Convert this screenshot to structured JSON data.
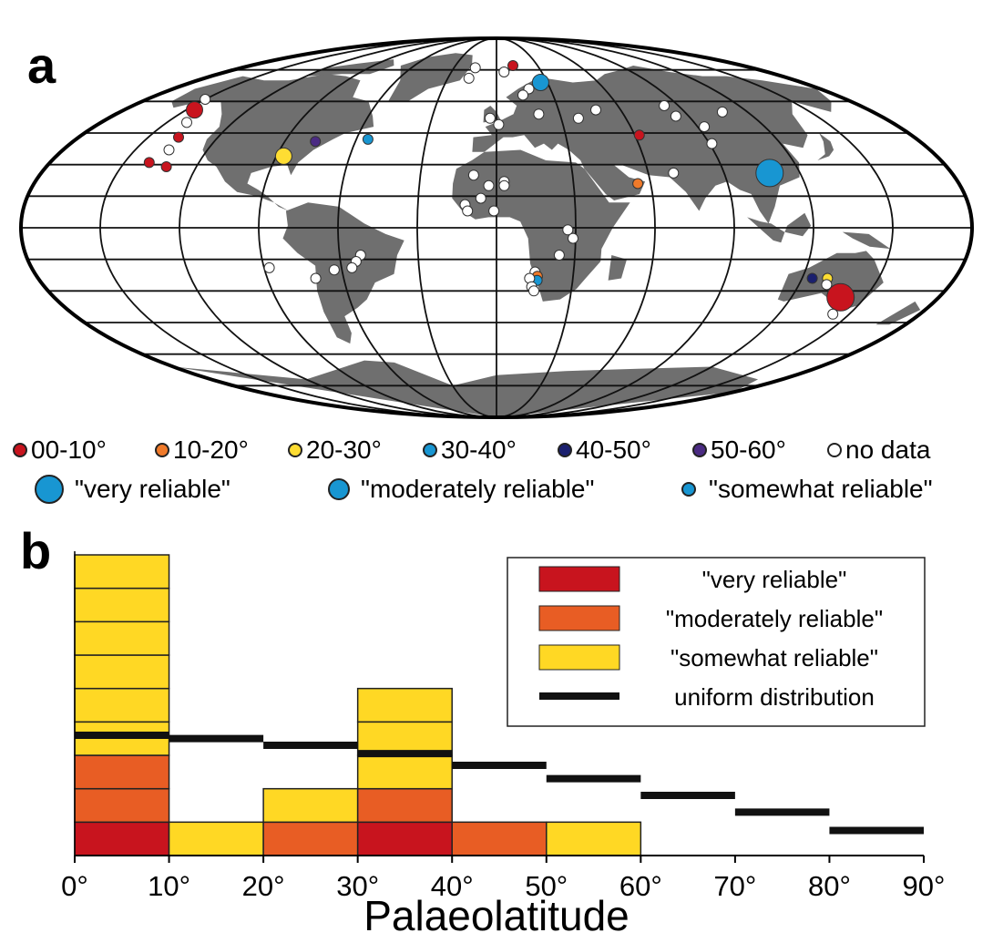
{
  "panel_labels": {
    "a": "a",
    "b": "b"
  },
  "colors": {
    "land": "#6f6f6f",
    "grid": "#111111",
    "red": "#c8141e",
    "orange": "#f07a2a",
    "yellow": "#fedd33",
    "light_blue": "#1896d2",
    "dark_blue": "#1a1f6e",
    "purple": "#4b2b83",
    "white": "#ffffff",
    "very_reliable": "#c8141e",
    "moderately_reliable": "#e85d24",
    "somewhat_reliable": "#ffd824",
    "uniform": "#111111"
  },
  "map_legend": {
    "bins": [
      {
        "label": "00-10°",
        "color": "#c8141e"
      },
      {
        "label": "10-20°",
        "color": "#f07a2a"
      },
      {
        "label": "20-30°",
        "color": "#fedd33"
      },
      {
        "label": "30-40°",
        "color": "#1896d2"
      },
      {
        "label": "40-50°",
        "color": "#1a1f6e"
      },
      {
        "label": "50-60°",
        "color": "#4b2b83"
      },
      {
        "label": "no data",
        "color": "#ffffff"
      }
    ],
    "reliability": [
      {
        "label": "\"very reliable\"",
        "size": "large"
      },
      {
        "label": "\"moderately reliable\"",
        "size": "medium"
      },
      {
        "label": "\"somewhat reliable\"",
        "size": "small"
      }
    ]
  },
  "chart_data": {
    "type": "bar",
    "stacked": true,
    "xlabel": "Palaeolatitude",
    "ylabel": "",
    "x_ticks": [
      "0°",
      "10°",
      "20°",
      "30°",
      "40°",
      "50°",
      "60°",
      "70°",
      "80°",
      "90°"
    ],
    "bins": [
      "0-10",
      "10-20",
      "20-30",
      "30-40",
      "40-50",
      "50-60",
      "60-70",
      "70-80",
      "80-90"
    ],
    "xlim": [
      0,
      90
    ],
    "ylim": [
      0,
      9
    ],
    "series": [
      {
        "name": "\"very reliable\"",
        "values": [
          1,
          0,
          0,
          1,
          0,
          0,
          0,
          0,
          0
        ],
        "color": "#c8141e"
      },
      {
        "name": "\"moderately reliable\"",
        "values": [
          2,
          0,
          1,
          1,
          1,
          0,
          0,
          0,
          0
        ],
        "color": "#e85d24"
      },
      {
        "name": "\"somewhat reliable\"",
        "values": [
          6,
          1,
          1,
          3,
          0,
          1,
          0,
          0,
          0
        ],
        "color": "#ffd824"
      }
    ],
    "uniform_distribution": {
      "name": "uniform distribution",
      "values": [
        3.6,
        3.5,
        3.3,
        3.05,
        2.7,
        2.3,
        1.8,
        1.3,
        0.75
      ]
    },
    "legend": {
      "position": "top-right",
      "entries": [
        "\"very reliable\"",
        "\"moderately reliable\"",
        "\"somewhat reliable\"",
        "uniform distribution"
      ]
    },
    "grid": false
  },
  "map_sites": [
    {
      "lon": -150,
      "lat": 61,
      "bin": "white",
      "size": "small"
    },
    {
      "lon": -146,
      "lat": 56,
      "bin": "red",
      "size": "medium"
    },
    {
      "lon": -141,
      "lat": 50,
      "bin": "white",
      "size": "small"
    },
    {
      "lon": -137,
      "lat": 43,
      "bin": "red",
      "size": "small"
    },
    {
      "lon": -136,
      "lat": 37,
      "bin": "white",
      "size": "small"
    },
    {
      "lon": -140,
      "lat": 31,
      "bin": "red",
      "size": "small"
    },
    {
      "lon": -132,
      "lat": 29,
      "bin": "red",
      "size": "small"
    },
    {
      "lon": -87,
      "lat": 34,
      "bin": "yellow",
      "size": "medium"
    },
    {
      "lon": -77,
      "lat": 41,
      "bin": "purple",
      "size": "small"
    },
    {
      "lon": -55,
      "lat": 42,
      "bin": "light_blue",
      "size": "small"
    },
    {
      "lon": -15,
      "lat": 76,
      "bin": "white",
      "size": "small"
    },
    {
      "lon": -17,
      "lat": 71,
      "bin": "white",
      "size": "small"
    },
    {
      "lon": 12,
      "lat": 77,
      "bin": "red",
      "size": "small"
    },
    {
      "lon": 5,
      "lat": 74,
      "bin": "white",
      "size": "small"
    },
    {
      "lon": 26,
      "lat": 69,
      "bin": "light_blue",
      "size": "medium"
    },
    {
      "lon": 18,
      "lat": 66,
      "bin": "white",
      "size": "small"
    },
    {
      "lon": 14,
      "lat": 63,
      "bin": "white",
      "size": "small"
    },
    {
      "lon": -3,
      "lat": 52,
      "bin": "white",
      "size": "small"
    },
    {
      "lon": 1,
      "lat": 49,
      "bin": "white",
      "size": "small"
    },
    {
      "lon": 20,
      "lat": 54,
      "bin": "white",
      "size": "small"
    },
    {
      "lon": 38,
      "lat": 52,
      "bin": "white",
      "size": "small"
    },
    {
      "lon": 48,
      "lat": 56,
      "bin": "white",
      "size": "small"
    },
    {
      "lon": 83,
      "lat": 58,
      "bin": "white",
      "size": "small"
    },
    {
      "lon": 108,
      "lat": 55,
      "bin": "white",
      "size": "small"
    },
    {
      "lon": 84,
      "lat": 53,
      "bin": "white",
      "size": "small"
    },
    {
      "lon": 93,
      "lat": 48,
      "bin": "white",
      "size": "small"
    },
    {
      "lon": 62,
      "lat": 44,
      "bin": "red",
      "size": "small"
    },
    {
      "lon": 91,
      "lat": 40,
      "bin": "white",
      "size": "small"
    },
    {
      "lon": 110,
      "lat": 30,
      "bin": "white",
      "size": "small"
    },
    {
      "lon": 108,
      "lat": 26,
      "bin": "light_blue",
      "size": "large"
    },
    {
      "lon": 70,
      "lat": 26,
      "bin": "white",
      "size": "small"
    },
    {
      "lon": 55,
      "lat": 21,
      "bin": "orange",
      "size": "small"
    },
    {
      "lon": -9,
      "lat": 25,
      "bin": "white",
      "size": "small"
    },
    {
      "lon": -3,
      "lat": 20,
      "bin": "white",
      "size": "small"
    },
    {
      "lon": 3,
      "lat": 22,
      "bin": "white",
      "size": "small"
    },
    {
      "lon": 3,
      "lat": 20,
      "bin": "white",
      "size": "small"
    },
    {
      "lon": -6,
      "lat": 14,
      "bin": "white",
      "size": "small"
    },
    {
      "lon": -12,
      "lat": 11,
      "bin": "white",
      "size": "small"
    },
    {
      "lon": -11,
      "lat": 8,
      "bin": "white",
      "size": "small"
    },
    {
      "lon": -1,
      "lat": 8,
      "bin": "white",
      "size": "small"
    },
    {
      "lon": 27,
      "lat": -1,
      "bin": "white",
      "size": "small"
    },
    {
      "lon": 29,
      "lat": -5,
      "bin": "white",
      "size": "small"
    },
    {
      "lon": 24,
      "lat": -13,
      "bin": "white",
      "size": "small"
    },
    {
      "lon": 15,
      "lat": -21,
      "bin": "white",
      "size": "small"
    },
    {
      "lon": 16,
      "lat": -23,
      "bin": "orange",
      "size": "small"
    },
    {
      "lon": 16,
      "lat": -25,
      "bin": "light_blue",
      "size": "small"
    },
    {
      "lon": 13,
      "lat": -24,
      "bin": "white",
      "size": "small"
    },
    {
      "lon": 14,
      "lat": -28,
      "bin": "white",
      "size": "small"
    },
    {
      "lon": 15,
      "lat": -30,
      "bin": "white",
      "size": "small"
    },
    {
      "lon": -52,
      "lat": -13,
      "bin": "white",
      "size": "small"
    },
    {
      "lon": -54,
      "lat": -16,
      "bin": "white",
      "size": "small"
    },
    {
      "lon": -56,
      "lat": -19,
      "bin": "white",
      "size": "small"
    },
    {
      "lon": -63,
      "lat": -20,
      "bin": "white",
      "size": "small"
    },
    {
      "lon": -71,
      "lat": -24,
      "bin": "white",
      "size": "small"
    },
    {
      "lon": -88,
      "lat": -19,
      "bin": "white",
      "size": "small"
    },
    {
      "lon": 124,
      "lat": -24,
      "bin": "dark_blue",
      "size": "small"
    },
    {
      "lon": 130,
      "lat": -24,
      "bin": "yellow",
      "size": "small"
    },
    {
      "lon": 131,
      "lat": -27,
      "bin": "white",
      "size": "small"
    },
    {
      "lon": 140,
      "lat": -33,
      "bin": "red",
      "size": "large"
    },
    {
      "lon": 143,
      "lat": -41,
      "bin": "white",
      "size": "small"
    }
  ]
}
